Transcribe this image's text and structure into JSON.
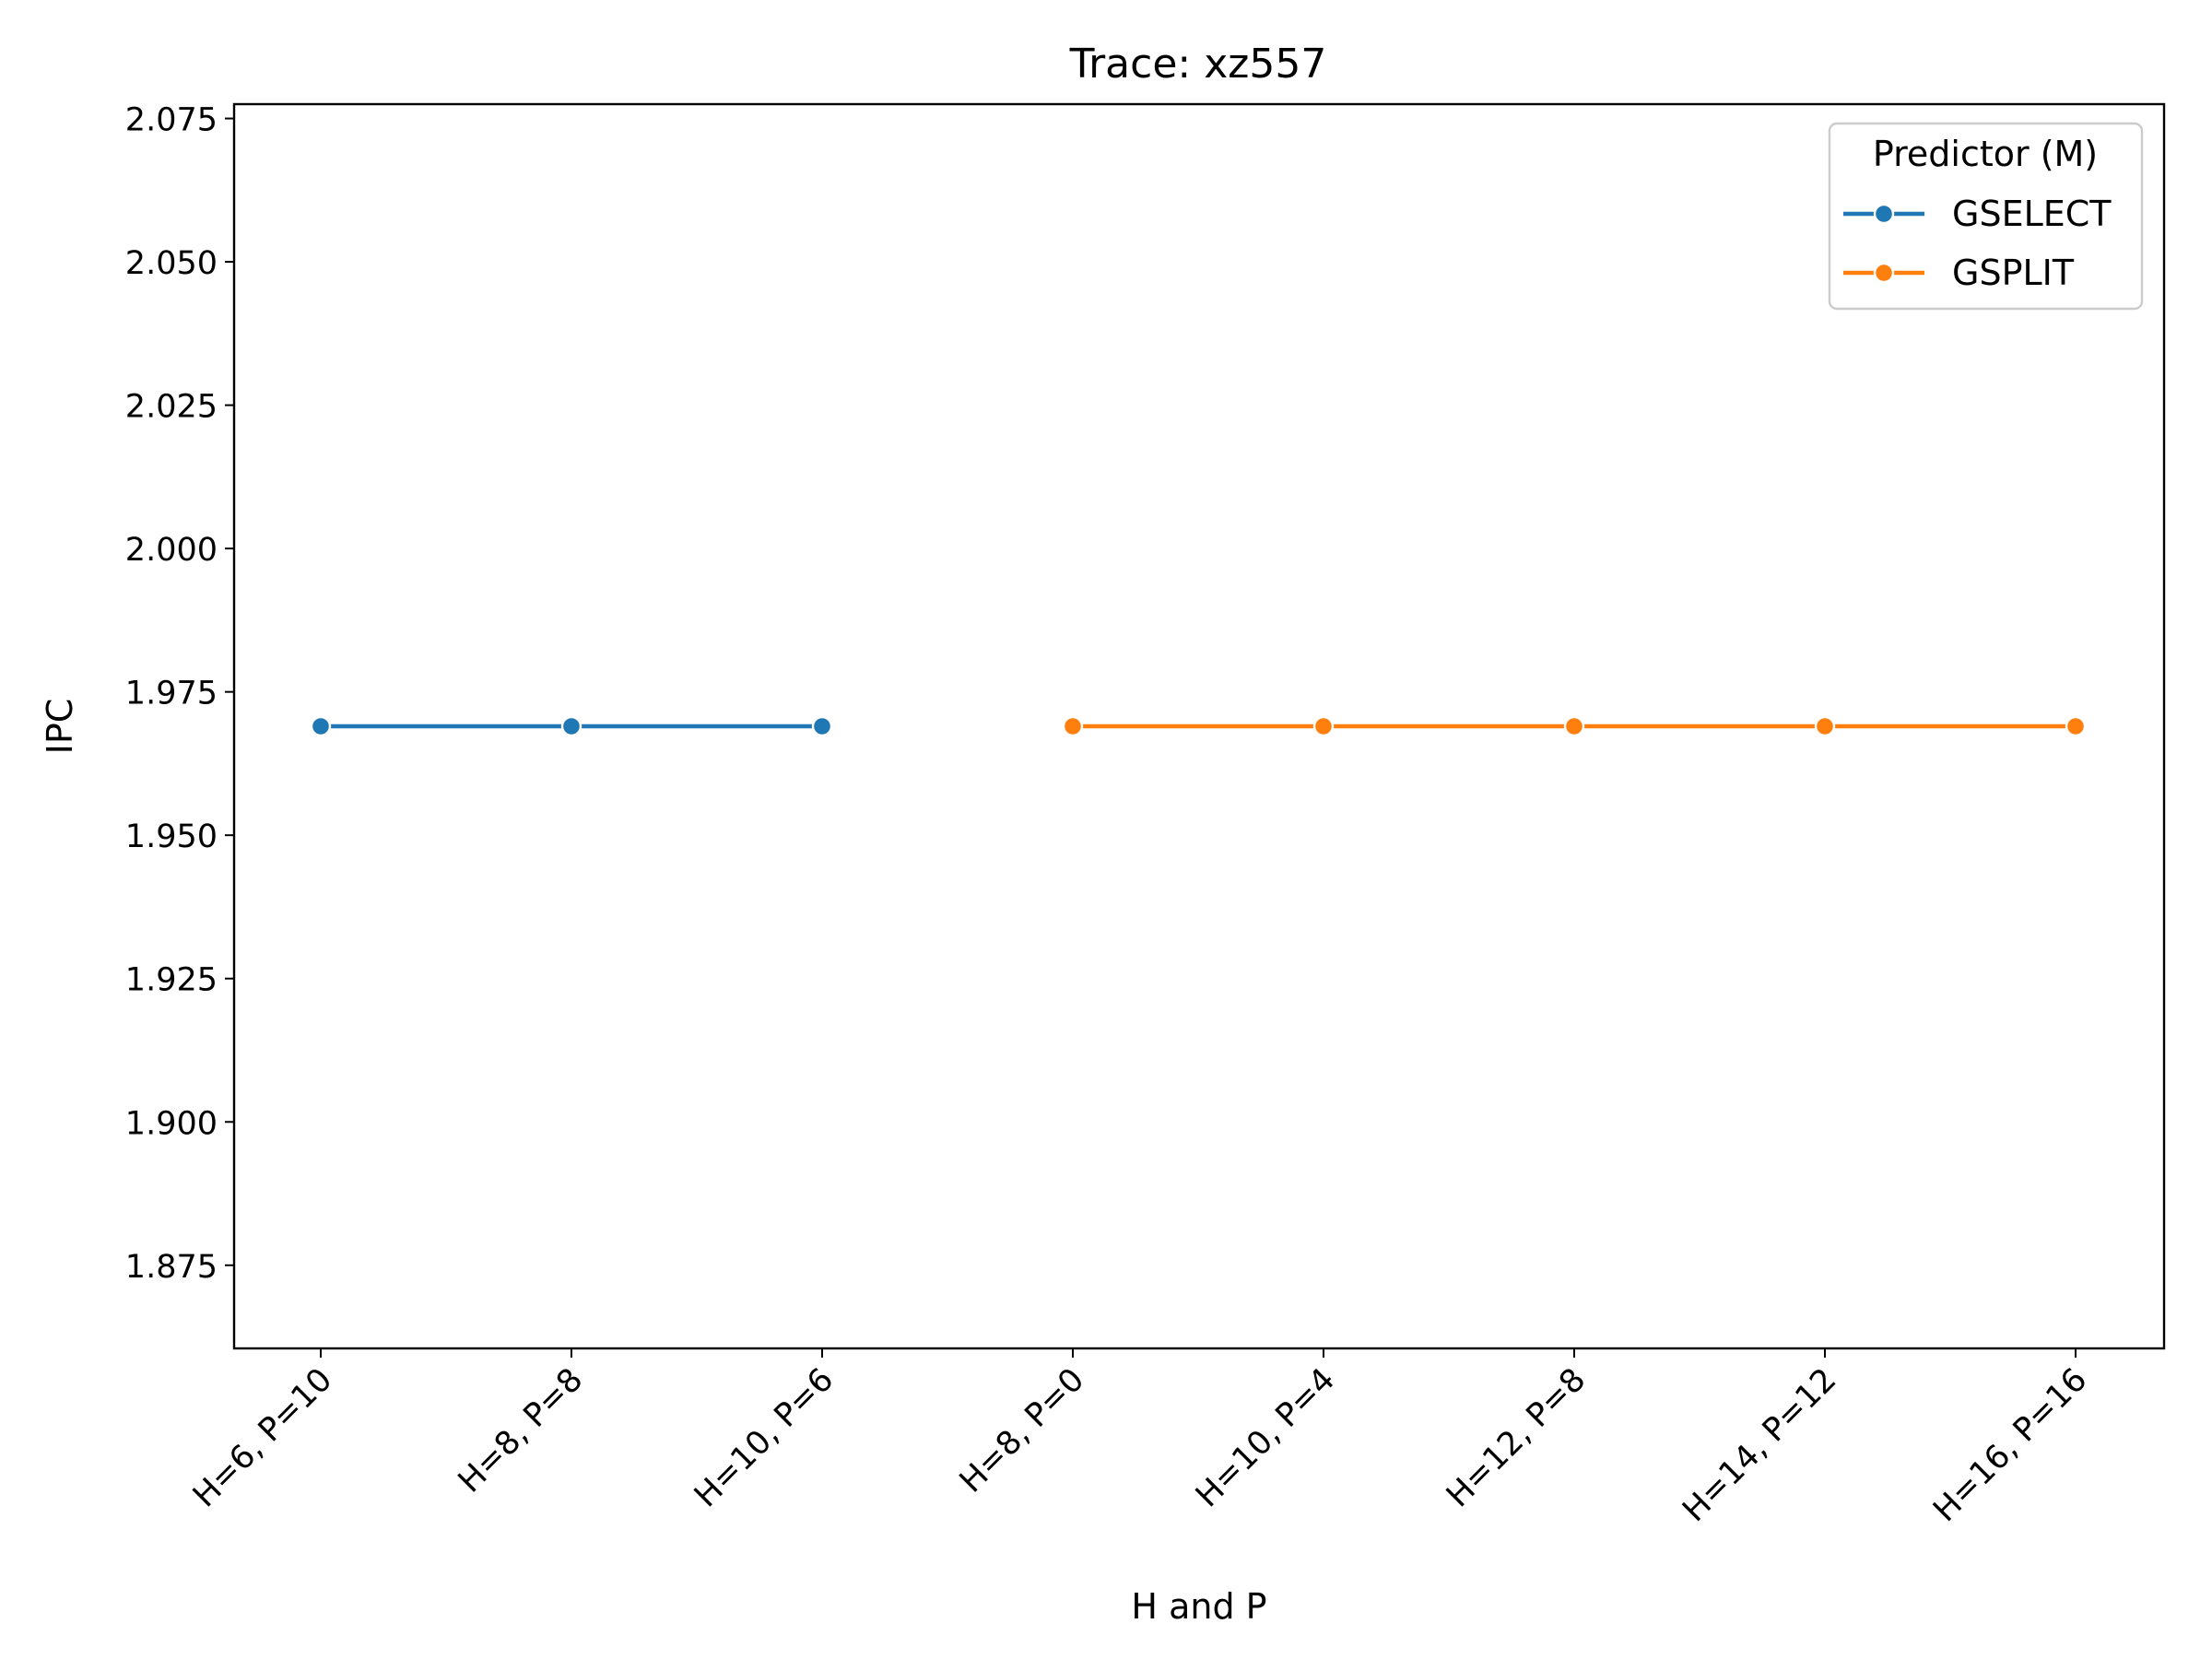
{
  "chart_data": {
    "type": "line",
    "title": "Trace: xz557",
    "xlabel": "H and P",
    "ylabel": "IPC",
    "categories": [
      "H=6, P=10",
      "H=8, P=8",
      "H=10, P=6",
      "H=8, P=0",
      "H=10, P=4",
      "H=12, P=8",
      "H=14, P=12",
      "H=16, P=16"
    ],
    "ylim": [
      1.8605,
      2.0775
    ],
    "yticks": [
      "1.875",
      "1.900",
      "1.925",
      "1.950",
      "1.975",
      "2.000",
      "2.025",
      "2.050",
      "2.075"
    ],
    "grid": false,
    "legend": {
      "title": "Predictor (M)",
      "placement": "top-right"
    },
    "series": [
      {
        "name": "GSELECT",
        "color": "#1f77b4",
        "x": [
          "H=6, P=10",
          "H=8, P=8",
          "H=10, P=6"
        ],
        "values": [
          1.969,
          1.969,
          1.969
        ]
      },
      {
        "name": "GSPLIT",
        "color": "#ff7f0e",
        "x": [
          "H=8, P=0",
          "H=10, P=4",
          "H=12, P=8",
          "H=14, P=12",
          "H=16, P=16"
        ],
        "values": [
          1.969,
          1.969,
          1.969,
          1.969,
          1.969
        ]
      }
    ]
  }
}
